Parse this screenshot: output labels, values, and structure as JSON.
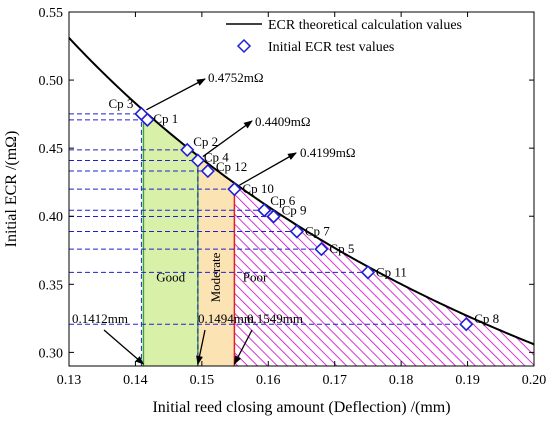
{
  "chart_data": {
    "type": "scatter",
    "xlabel": "Initial reed closing amount (Deflection) /(mm)",
    "ylabel": "Initial ECR /(mΩ)",
    "xlim": [
      0.13,
      0.2
    ],
    "ylim": [
      0.29,
      0.55
    ],
    "xticks": [
      "0.13",
      "0.14",
      "0.15",
      "0.16",
      "0.17",
      "0.18",
      "0.19",
      "0.20"
    ],
    "yticks": [
      "0.30",
      "0.35",
      "0.40",
      "0.45",
      "0.50",
      "0.55"
    ],
    "grid": false,
    "legend_position": "top-right",
    "series": [
      {
        "name": "ECR theoretical calculation values",
        "kind": "curve",
        "color": "#000000",
        "x": [
          0.13,
          0.135,
          0.14,
          0.145,
          0.15,
          0.155,
          0.16,
          0.165,
          0.17,
          0.175,
          0.18,
          0.185,
          0.19,
          0.195,
          0.2
        ],
        "y": [
          0.531,
          0.5037,
          0.4792,
          0.4569,
          0.4367,
          0.4183,
          0.4015,
          0.3861,
          0.3719,
          0.3589,
          0.3468,
          0.3357,
          0.3253,
          0.3156,
          0.3066
        ]
      },
      {
        "name": "Initial ECR test values",
        "kind": "points",
        "color": "#1f1fd6",
        "marker": "diamond",
        "points": [
          {
            "label": "Cp 3",
            "x": 0.1409,
            "y": 0.4752
          },
          {
            "label": "Cp 1",
            "x": 0.1418,
            "y": 0.4708
          },
          {
            "label": "Cp 2",
            "x": 0.1478,
            "y": 0.4487
          },
          {
            "label": "Cp 4",
            "x": 0.1494,
            "y": 0.4409
          },
          {
            "label": "Cp 12",
            "x": 0.1509,
            "y": 0.4332
          },
          {
            "label": "Cp 10",
            "x": 0.1549,
            "y": 0.4199
          },
          {
            "label": "Cp 6",
            "x": 0.1594,
            "y": 0.4044
          },
          {
            "label": "Cp 9",
            "x": 0.1608,
            "y": 0.3998
          },
          {
            "label": "Cp 7",
            "x": 0.1643,
            "y": 0.3888
          },
          {
            "label": "Cp 5",
            "x": 0.168,
            "y": 0.3758
          },
          {
            "label": "Cp 11",
            "x": 0.175,
            "y": 0.3588
          },
          {
            "label": "Cp 8",
            "x": 0.1898,
            "y": 0.3207
          }
        ]
      }
    ],
    "regions": [
      {
        "label": "Good",
        "x_from": 0.1412,
        "x_to": 0.1494,
        "color": "#d8f0a8"
      },
      {
        "label": "Moderate",
        "x_from": 0.1494,
        "x_to": 0.1549,
        "color": "#fbe3b4"
      },
      {
        "label": "Poor",
        "x_from": 0.1549,
        "x_to": 0.2,
        "color": "#d100d1"
      }
    ],
    "thresholds_x": [
      {
        "value": 0.1412,
        "label": "0.1412mm",
        "color": "#3aa63a"
      },
      {
        "value": 0.1494,
        "label": "0.1494mm",
        "color": "#3aa63a"
      },
      {
        "value": 0.1549,
        "label": "0.1549mm",
        "color": "#e02020"
      }
    ],
    "annotations_y": [
      {
        "label": "0.4752mΩ",
        "y": 0.4752
      },
      {
        "label": "0.4409mΩ",
        "y": 0.4409
      },
      {
        "label": "0.4199mΩ",
        "y": 0.4199
      }
    ]
  }
}
